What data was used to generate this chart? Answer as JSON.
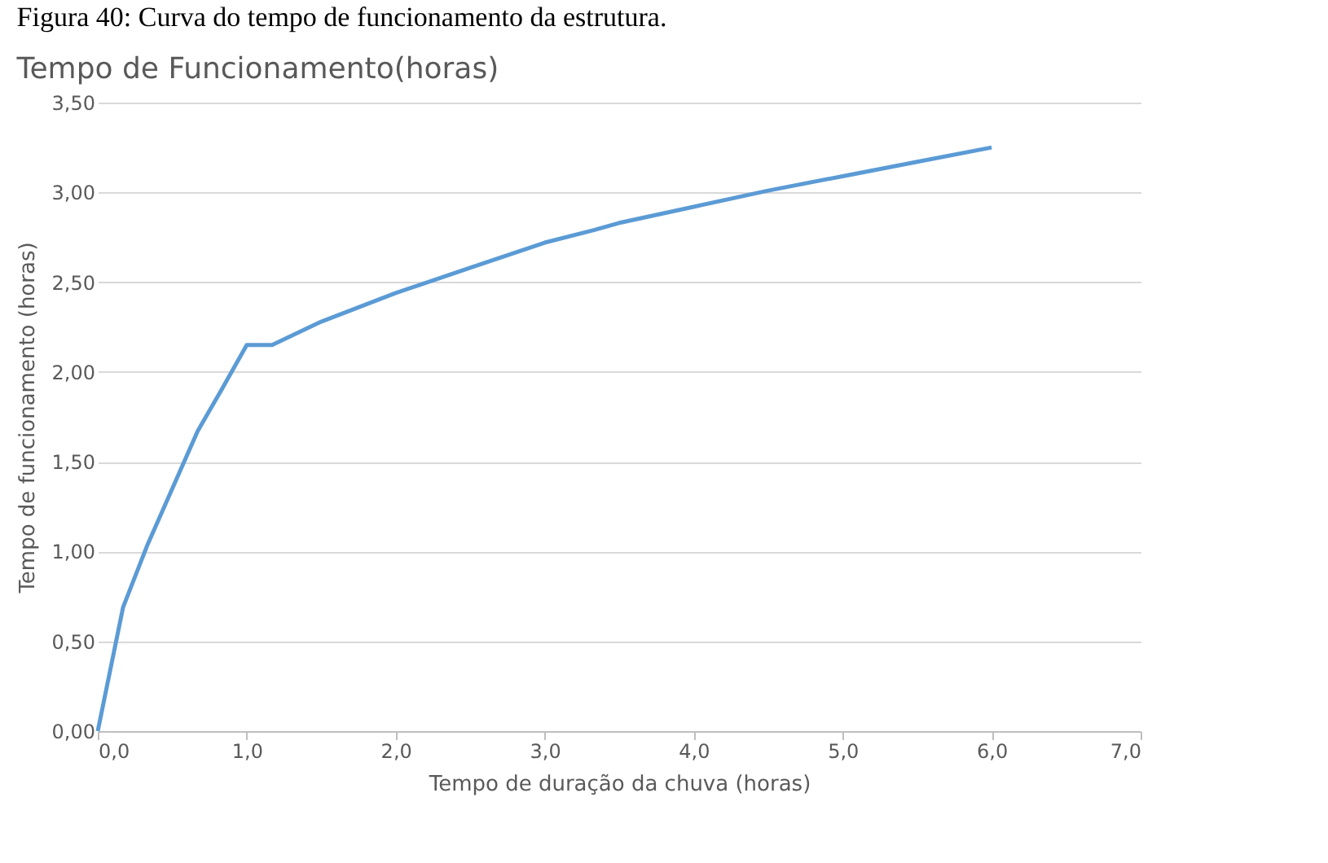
{
  "chart_data": {
    "type": "line",
    "title": "Tempo de Funcionamento(horas)",
    "xlabel": "Tempo de duração da chuva (horas)",
    "ylabel": "Tempo de funcionamento (horas)",
    "annotations": [
      "Figura 40: Curva do tempo de funcionamento da estrutura."
    ],
    "x": [
      0,
      0.17,
      0.33,
      0.5,
      0.67,
      0.83,
      1.0,
      1.17,
      1.5,
      2.0,
      2.5,
      3.0,
      3.33,
      3.5,
      4.0,
      4.5,
      5.0,
      5.5,
      6.0
    ],
    "series": [
      {
        "color": "#5b9bd5",
        "values": [
          0,
          0.69,
          1.03,
          1.35,
          1.67,
          1.9,
          2.15,
          2.15,
          2.28,
          2.44,
          2.58,
          2.72,
          2.79,
          2.83,
          2.92,
          3.01,
          3.09,
          3.17,
          3.25
        ]
      }
    ],
    "xlim": [
      0,
      7
    ],
    "ylim": [
      0,
      3.5
    ],
    "xticks": [
      {
        "value": 0,
        "label": "0,0"
      },
      {
        "value": 1,
        "label": "1,0"
      },
      {
        "value": 2,
        "label": "2,0"
      },
      {
        "value": 3,
        "label": "3,0"
      },
      {
        "value": 4,
        "label": "4,0"
      },
      {
        "value": 5,
        "label": "5,0"
      },
      {
        "value": 6,
        "label": "6,0"
      },
      {
        "value": 7,
        "label": "7,0"
      }
    ],
    "yticks": [
      {
        "value": 0,
        "label": "0,00"
      },
      {
        "value": 0.5,
        "label": "0,50"
      },
      {
        "value": 1,
        "label": "1,00"
      },
      {
        "value": 1.5,
        "label": "1,50"
      },
      {
        "value": 2,
        "label": "2,00"
      },
      {
        "value": 2.5,
        "label": "2,50"
      },
      {
        "value": 3,
        "label": "3,00"
      },
      {
        "value": 3.5,
        "label": "3,50"
      }
    ],
    "grid": "y",
    "marker": "none",
    "line_style": "solid"
  }
}
